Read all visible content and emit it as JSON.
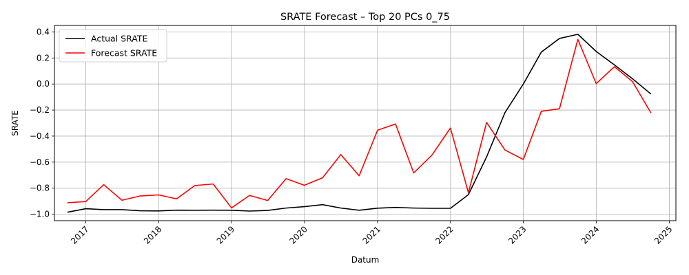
{
  "chart_data": {
    "type": "line",
    "title": "SRATE Forecast – Top 20 PCs 0_75",
    "xlabel": "Datum",
    "ylabel": "SRATE",
    "x_is_date": true,
    "xlim": [
      "2016-07-28",
      "2025-02-03"
    ],
    "ylim": [
      -1.05,
      0.45
    ],
    "x_ticks": [
      "2017-01-01",
      "2018-01-01",
      "2019-01-01",
      "2020-01-01",
      "2021-01-01",
      "2022-01-01",
      "2023-01-01",
      "2024-01-01",
      "2025-01-01"
    ],
    "x_tick_labels": [
      "2017",
      "2018",
      "2019",
      "2020",
      "2021",
      "2022",
      "2023",
      "2024",
      "2025"
    ],
    "y_ticks": [
      -1.0,
      -0.8,
      -0.6,
      -0.4,
      -0.2,
      0.0,
      0.2,
      0.4
    ],
    "y_tick_labels": [
      "−1.0",
      "−0.8",
      "−0.6",
      "−0.4",
      "−0.2",
      "0.0",
      "0.2",
      "0.4"
    ],
    "grid": true,
    "legend_position": "top-left",
    "x": [
      "2016-10-01",
      "2017-01-01",
      "2017-04-01",
      "2017-07-01",
      "2017-10-01",
      "2018-01-01",
      "2018-04-01",
      "2018-07-01",
      "2018-10-01",
      "2019-01-01",
      "2019-04-01",
      "2019-07-01",
      "2019-10-01",
      "2020-01-01",
      "2020-04-01",
      "2020-07-01",
      "2020-10-01",
      "2021-01-01",
      "2021-04-01",
      "2021-07-01",
      "2021-10-01",
      "2022-01-01",
      "2022-04-01",
      "2022-07-01",
      "2022-10-01",
      "2023-01-01",
      "2023-04-01",
      "2023-07-01",
      "2023-10-01",
      "2024-01-01",
      "2024-04-01",
      "2024-07-01",
      "2024-10-01"
    ],
    "series": [
      {
        "name": "Actual SRATE",
        "color": "#000000",
        "values": [
          -0.985,
          -0.958,
          -0.965,
          -0.965,
          -0.974,
          -0.975,
          -0.969,
          -0.97,
          -0.969,
          -0.97,
          -0.976,
          -0.971,
          -0.953,
          -0.942,
          -0.927,
          -0.953,
          -0.97,
          -0.954,
          -0.948,
          -0.953,
          -0.955,
          -0.955,
          -0.85,
          -0.56,
          -0.22,
          0.0,
          0.245,
          0.35,
          0.382,
          0.25,
          0.147,
          0.04,
          -0.077
        ]
      },
      {
        "name": "Forecast SRATE",
        "color": "#ff0000",
        "values": [
          -0.912,
          -0.903,
          -0.773,
          -0.893,
          -0.86,
          -0.852,
          -0.882,
          -0.78,
          -0.768,
          -0.952,
          -0.856,
          -0.895,
          -0.727,
          -0.778,
          -0.72,
          -0.542,
          -0.705,
          -0.355,
          -0.307,
          -0.683,
          -0.545,
          -0.338,
          -0.835,
          -0.295,
          -0.507,
          -0.58,
          -0.21,
          -0.19,
          0.343,
          0.003,
          0.133,
          0.018,
          -0.222
        ]
      }
    ]
  }
}
